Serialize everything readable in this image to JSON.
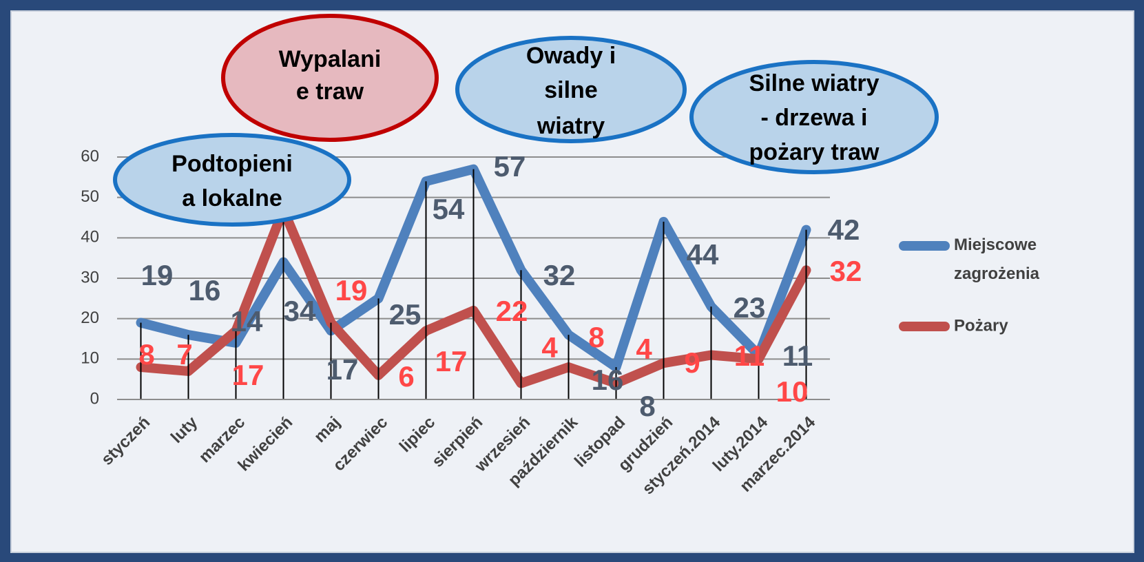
{
  "chart_data": {
    "type": "line",
    "categories": [
      "styczeń",
      "luty",
      "marzec",
      "kwiecień",
      "maj",
      "czerwiec",
      "lipiec",
      "sierpień",
      "wrzesień",
      "październik",
      "listopad",
      "grudzień",
      "styczeń.2014",
      "luty.2014",
      "marzec.2014"
    ],
    "series": [
      {
        "name": "Miejscowe zagrożenia",
        "color": "#4f81bd",
        "label_color": "#4d5b6e",
        "values": [
          19,
          16,
          14,
          34,
          17,
          25,
          54,
          57,
          32,
          16,
          8,
          44,
          23,
          11,
          42
        ]
      },
      {
        "name": "Pożary",
        "color": "#c0504d",
        "label_color": "#ff4747",
        "values": [
          8,
          7,
          17,
          47,
          19,
          6,
          17,
          22,
          4,
          8,
          4,
          9,
          11,
          10,
          32
        ]
      }
    ],
    "ylim": [
      0,
      60
    ],
    "yticks": [
      0,
      10,
      20,
      30,
      40,
      50,
      60
    ],
    "grid": true,
    "legend": "right",
    "annotations": [
      {
        "lines": [
          "Podtopieni",
          "a lokalne"
        ],
        "fill": "#b9d3ea",
        "stroke": "#1a72c4"
      },
      {
        "lines": [
          "Wypalani",
          "e traw"
        ],
        "fill": "#e6b9bf",
        "stroke": "#c00000"
      },
      {
        "lines": [
          "Owady i",
          "silne",
          "wiatry"
        ],
        "fill": "#b9d3ea",
        "stroke": "#1a72c4"
      },
      {
        "lines": [
          "Silne wiatry",
          "- drzewa i",
          "pożary traw"
        ],
        "fill": "#b9d3ea",
        "stroke": "#1a72c4"
      }
    ]
  }
}
